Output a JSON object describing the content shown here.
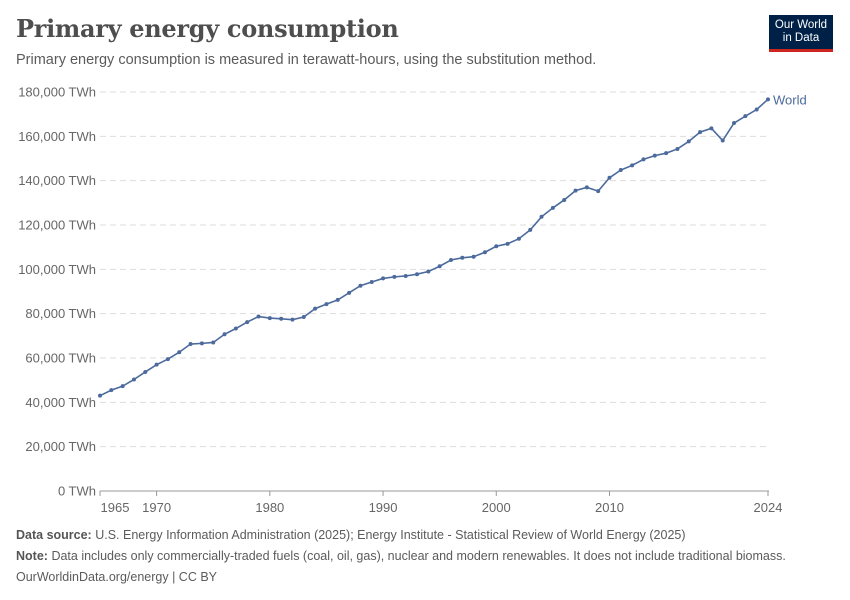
{
  "header": {
    "title": "Primary energy consumption",
    "subtitle": "Primary energy consumption is measured in terawatt-hours, using the substitution method.",
    "logo": "Our World in Data"
  },
  "chart_data": {
    "type": "line",
    "title": "Primary energy consumption",
    "ylim": [
      0,
      180000
    ],
    "yticks": [
      0,
      20000,
      40000,
      60000,
      80000,
      100000,
      120000,
      140000,
      160000,
      180000
    ],
    "ytick_labels": [
      "0 TWh",
      "20,000 TWh",
      "40,000 TWh",
      "60,000 TWh",
      "80,000 TWh",
      "100,000 TWh",
      "120,000 TWh",
      "140,000 TWh",
      "160,000 TWh",
      "180,000 TWh"
    ],
    "xlim": [
      1965,
      2024
    ],
    "xticks": [
      1965,
      1970,
      1980,
      1990,
      2000,
      2010,
      2024
    ],
    "grid": "horizontal dashed",
    "color": "#4c6a9c",
    "series": [
      {
        "name": "World",
        "x": [
          1965,
          1966,
          1967,
          1968,
          1969,
          1970,
          1971,
          1972,
          1973,
          1974,
          1975,
          1976,
          1977,
          1978,
          1979,
          1980,
          1981,
          1982,
          1983,
          1984,
          1985,
          1986,
          1987,
          1988,
          1989,
          1990,
          1991,
          1992,
          1993,
          1994,
          1995,
          1996,
          1997,
          1998,
          1999,
          2000,
          2001,
          2002,
          2003,
          2004,
          2005,
          2006,
          2007,
          2008,
          2009,
          2010,
          2011,
          2012,
          2013,
          2014,
          2015,
          2016,
          2017,
          2018,
          2019,
          2020,
          2021,
          2022,
          2023,
          2024
        ],
        "values": [
          43000,
          45500,
          47300,
          50300,
          53700,
          57000,
          59500,
          62600,
          66300,
          66600,
          67000,
          70700,
          73300,
          76200,
          78700,
          78000,
          77700,
          77300,
          78500,
          82300,
          84300,
          86200,
          89400,
          92600,
          94300,
          95900,
          96600,
          97000,
          97800,
          99000,
          101400,
          104200,
          105200,
          105700,
          107700,
          110400,
          111500,
          113800,
          117800,
          123700,
          127700,
          131300,
          135500,
          137000,
          135300,
          141300,
          144800,
          146900,
          149600,
          151300,
          152400,
          154300,
          157700,
          161900,
          163600,
          158100,
          166000,
          169100,
          172100,
          176700
        ]
      }
    ]
  },
  "footer": {
    "source_label": "Data source:",
    "source": "U.S. Energy Information Administration (2025); Energy Institute - Statistical Review of World Energy (2025)",
    "note_label": "Note:",
    "note": "Data includes only commercially-traded fuels (coal, oil, gas), nuclear and modern renewables. It does not include traditional biomass.",
    "credit": "OurWorldinData.org/energy | CC BY"
  }
}
